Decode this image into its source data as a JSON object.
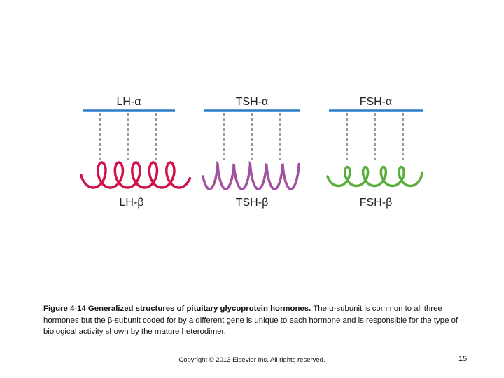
{
  "diagram": {
    "hormones": [
      {
        "alpha": "LH-α",
        "beta": "LH-β"
      },
      {
        "alpha": "TSH-α",
        "beta": "TSH-β"
      },
      {
        "alpha": "FSH-α",
        "beta": "FSH-β"
      }
    ]
  },
  "caption": {
    "title": "Figure 4-14 Generalized structures of pituitary glycoprotein hormones.",
    "body": "The α-subunit is common to all three hormones but the β-subunit coded for by a different gene is unique to each hormone and is responsible for the type of biological activity shown by the mature heterodimer."
  },
  "footer": {
    "copyright": "Copyright © 2013 Elsevier Inc. All rights reserved.",
    "page": "15"
  }
}
